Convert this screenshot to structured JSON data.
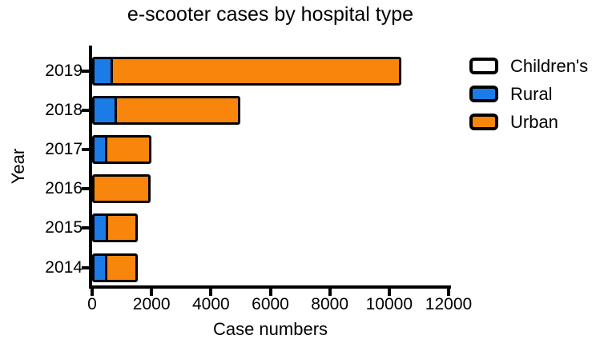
{
  "title": "e-scooter cases by hospital type",
  "chart_data": {
    "type": "bar",
    "orientation": "horizontal",
    "stacked": true,
    "title": "e-scooter cases by hospital type",
    "xlabel": "Case numbers",
    "ylabel": "Year",
    "xlim": [
      0,
      12000
    ],
    "xticks": [
      0,
      2000,
      4000,
      6000,
      8000,
      10000,
      12000
    ],
    "xtick_labels": [
      "0",
      "2000",
      "4000",
      "6000",
      "8000",
      "10000",
      "12000"
    ],
    "categories": [
      "2019",
      "2018",
      "2017",
      "2016",
      "2015",
      "2014"
    ],
    "series": [
      {
        "name": "Children's",
        "color": "#FFFFFF",
        "values": [
          0,
          0,
          0,
          0,
          0,
          0
        ]
      },
      {
        "name": "Rural",
        "color": "#1B7CE8",
        "values": [
          620,
          760,
          420,
          0,
          460,
          420
        ]
      },
      {
        "name": "Urban",
        "color": "#F8860D",
        "values": [
          9780,
          4240,
          1570,
          1980,
          1070,
          1120
        ]
      }
    ],
    "totals": [
      10400,
      5000,
      1990,
      1980,
      1530,
      1540
    ],
    "legend_position": "right",
    "grid": false,
    "axis_color": "#000000",
    "background_color": "#FFFFFF"
  }
}
